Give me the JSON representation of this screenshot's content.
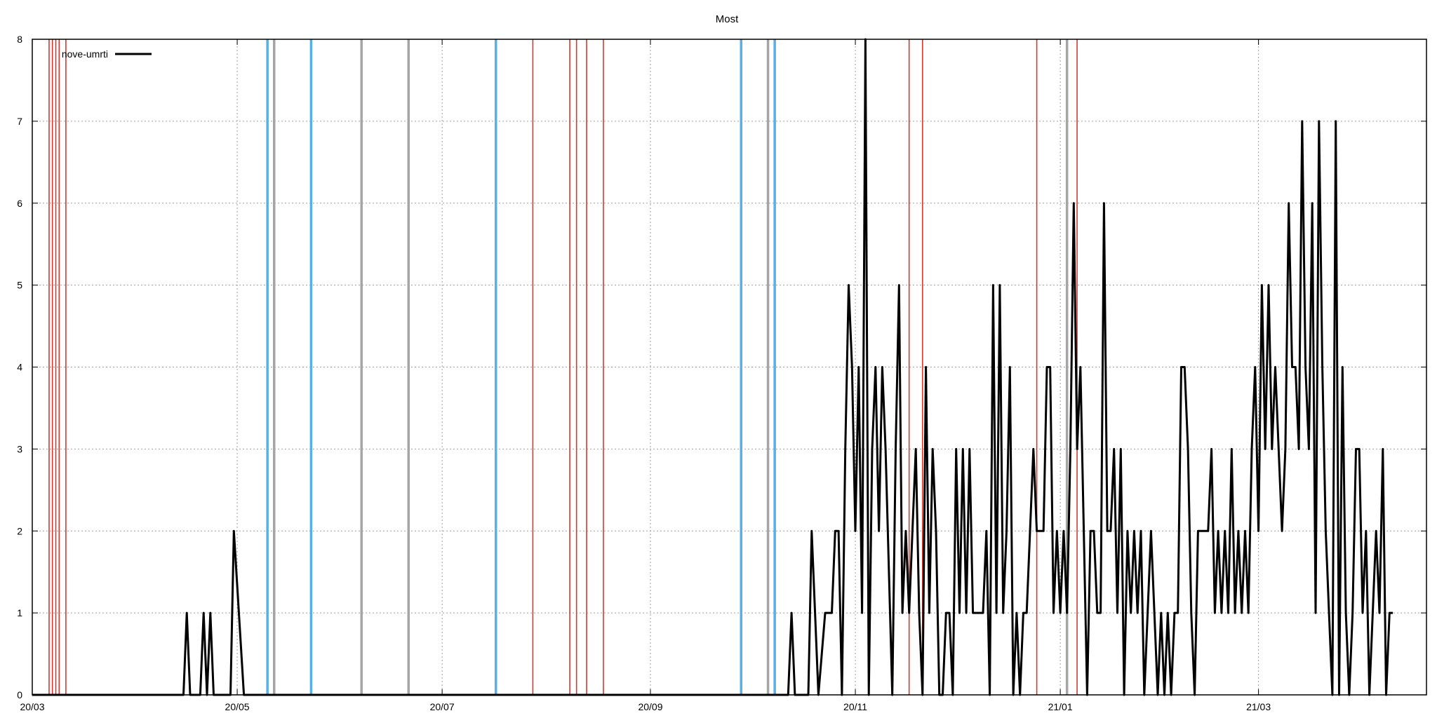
{
  "chart_data": {
    "type": "line",
    "title": "Most",
    "xlabel": "",
    "ylabel": "",
    "x_axis": {
      "range_dates": [
        "2020-03-01",
        "2021-04-20"
      ],
      "ticks": [
        {
          "date": "2020-03-01",
          "label": "20/03"
        },
        {
          "date": "2020-05-01",
          "label": "20/05"
        },
        {
          "date": "2020-07-01",
          "label": "20/07"
        },
        {
          "date": "2020-09-01",
          "label": "20/09"
        },
        {
          "date": "2020-11-01",
          "label": "20/11"
        },
        {
          "date": "2021-01-01",
          "label": "21/01"
        },
        {
          "date": "2021-03-01",
          "label": "21/03"
        }
      ]
    },
    "y_axis": {
      "range": [
        0,
        8
      ],
      "ticks": [
        "0",
        "1",
        "2",
        "3",
        "4",
        "5",
        "6",
        "7",
        "8"
      ]
    },
    "grid": true,
    "legend_position": "top-left",
    "series": [
      {
        "name": "nove-umrti",
        "color": "#000000",
        "points": [
          [
            "2020-03-01",
            0
          ],
          [
            "2020-04-15",
            0
          ],
          [
            "2020-04-16",
            1
          ],
          [
            "2020-04-17",
            0
          ],
          [
            "2020-04-20",
            0
          ],
          [
            "2020-04-21",
            1
          ],
          [
            "2020-04-22",
            0
          ],
          [
            "2020-04-23",
            1
          ],
          [
            "2020-04-24",
            0
          ],
          [
            "2020-04-29",
            0
          ],
          [
            "2020-04-30",
            2
          ],
          [
            "2020-05-03",
            0
          ],
          [
            "2020-10-12",
            0
          ],
          [
            "2020-10-13",
            1
          ],
          [
            "2020-10-14",
            0
          ],
          [
            "2020-10-18",
            0
          ],
          [
            "2020-10-19",
            2
          ],
          [
            "2020-10-21",
            0
          ],
          [
            "2020-10-23",
            1
          ],
          [
            "2020-10-25",
            1
          ],
          [
            "2020-10-26",
            2
          ],
          [
            "2020-10-27",
            2
          ],
          [
            "2020-10-28",
            0
          ],
          [
            "2020-10-29",
            3
          ],
          [
            "2020-10-30",
            5
          ],
          [
            "2020-10-31",
            4
          ],
          [
            "2020-11-01",
            2
          ],
          [
            "2020-11-02",
            4
          ],
          [
            "2020-11-03",
            1
          ],
          [
            "2020-11-04",
            8
          ],
          [
            "2020-11-05",
            0
          ],
          [
            "2020-11-06",
            3
          ],
          [
            "2020-11-07",
            4
          ],
          [
            "2020-11-08",
            2
          ],
          [
            "2020-11-09",
            4
          ],
          [
            "2020-11-10",
            3
          ],
          [
            "2020-11-12",
            0
          ],
          [
            "2020-11-13",
            3
          ],
          [
            "2020-11-14",
            5
          ],
          [
            "2020-11-15",
            1
          ],
          [
            "2020-11-16",
            2
          ],
          [
            "2020-11-17",
            1
          ],
          [
            "2020-11-18",
            2
          ],
          [
            "2020-11-19",
            3
          ],
          [
            "2020-11-20",
            1
          ],
          [
            "2020-11-21",
            0
          ],
          [
            "2020-11-22",
            4
          ],
          [
            "2020-11-23",
            1
          ],
          [
            "2020-11-24",
            3
          ],
          [
            "2020-11-25",
            2
          ],
          [
            "2020-11-26",
            0
          ],
          [
            "2020-11-27",
            0
          ],
          [
            "2020-11-28",
            1
          ],
          [
            "2020-11-29",
            1
          ],
          [
            "2020-11-30",
            0
          ],
          [
            "2020-12-01",
            3
          ],
          [
            "2020-12-02",
            1
          ],
          [
            "2020-12-03",
            3
          ],
          [
            "2020-12-04",
            1
          ],
          [
            "2020-12-05",
            3
          ],
          [
            "2020-12-06",
            1
          ],
          [
            "2020-12-09",
            1
          ],
          [
            "2020-12-10",
            2
          ],
          [
            "2020-12-11",
            0
          ],
          [
            "2020-12-12",
            5
          ],
          [
            "2020-12-13",
            1
          ],
          [
            "2020-12-14",
            5
          ],
          [
            "2020-12-15",
            1
          ],
          [
            "2020-12-16",
            2
          ],
          [
            "2020-12-17",
            4
          ],
          [
            "2020-12-18",
            0
          ],
          [
            "2020-12-19",
            1
          ],
          [
            "2020-12-20",
            0
          ],
          [
            "2020-12-21",
            1
          ],
          [
            "2020-12-22",
            1
          ],
          [
            "2020-12-23",
            2
          ],
          [
            "2020-12-24",
            3
          ],
          [
            "2020-12-25",
            2
          ],
          [
            "2020-12-27",
            2
          ],
          [
            "2020-12-28",
            4
          ],
          [
            "2020-12-29",
            4
          ],
          [
            "2020-12-30",
            1
          ],
          [
            "2020-12-31",
            2
          ],
          [
            "2021-01-01",
            1
          ],
          [
            "2021-01-02",
            2
          ],
          [
            "2021-01-03",
            1
          ],
          [
            "2021-01-04",
            3
          ],
          [
            "2021-01-05",
            6
          ],
          [
            "2021-01-06",
            3
          ],
          [
            "2021-01-07",
            4
          ],
          [
            "2021-01-08",
            2
          ],
          [
            "2021-01-09",
            0
          ],
          [
            "2021-01-10",
            2
          ],
          [
            "2021-01-11",
            2
          ],
          [
            "2021-01-12",
            1
          ],
          [
            "2021-01-13",
            1
          ],
          [
            "2021-01-14",
            6
          ],
          [
            "2021-01-15",
            2
          ],
          [
            "2021-01-16",
            2
          ],
          [
            "2021-01-17",
            3
          ],
          [
            "2021-01-18",
            1
          ],
          [
            "2021-01-19",
            3
          ],
          [
            "2021-01-20",
            0
          ],
          [
            "2021-01-21",
            2
          ],
          [
            "2021-01-22",
            1
          ],
          [
            "2021-01-23",
            2
          ],
          [
            "2021-01-24",
            1
          ],
          [
            "2021-01-25",
            2
          ],
          [
            "2021-01-26",
            0
          ],
          [
            "2021-01-27",
            1
          ],
          [
            "2021-01-28",
            2
          ],
          [
            "2021-01-29",
            1
          ],
          [
            "2021-01-30",
            0
          ],
          [
            "2021-01-31",
            1
          ],
          [
            "2021-02-01",
            0
          ],
          [
            "2021-02-02",
            1
          ],
          [
            "2021-02-03",
            0
          ],
          [
            "2021-02-04",
            1
          ],
          [
            "2021-02-05",
            1
          ],
          [
            "2021-02-06",
            4
          ],
          [
            "2021-02-07",
            4
          ],
          [
            "2021-02-08",
            3
          ],
          [
            "2021-02-09",
            1
          ],
          [
            "2021-02-10",
            0
          ],
          [
            "2021-02-11",
            2
          ],
          [
            "2021-02-12",
            2
          ],
          [
            "2021-02-14",
            2
          ],
          [
            "2021-02-15",
            3
          ],
          [
            "2021-02-16",
            1
          ],
          [
            "2021-02-17",
            2
          ],
          [
            "2021-02-18",
            1
          ],
          [
            "2021-02-19",
            2
          ],
          [
            "2021-02-20",
            1
          ],
          [
            "2021-02-21",
            3
          ],
          [
            "2021-02-22",
            1
          ],
          [
            "2021-02-23",
            2
          ],
          [
            "2021-02-24",
            1
          ],
          [
            "2021-02-25",
            2
          ],
          [
            "2021-02-26",
            1
          ],
          [
            "2021-02-27",
            3
          ],
          [
            "2021-02-28",
            4
          ],
          [
            "2021-03-01",
            2
          ],
          [
            "2021-03-02",
            5
          ],
          [
            "2021-03-03",
            3
          ],
          [
            "2021-03-04",
            5
          ],
          [
            "2021-03-05",
            3
          ],
          [
            "2021-03-06",
            4
          ],
          [
            "2021-03-07",
            3
          ],
          [
            "2021-03-08",
            2
          ],
          [
            "2021-03-09",
            3
          ],
          [
            "2021-03-10",
            6
          ],
          [
            "2021-03-11",
            4
          ],
          [
            "2021-03-12",
            4
          ],
          [
            "2021-03-13",
            3
          ],
          [
            "2021-03-14",
            7
          ],
          [
            "2021-03-15",
            4
          ],
          [
            "2021-03-16",
            3
          ],
          [
            "2021-03-17",
            6
          ],
          [
            "2021-03-18",
            1
          ],
          [
            "2021-03-19",
            7
          ],
          [
            "2021-03-20",
            4
          ],
          [
            "2021-03-21",
            2
          ],
          [
            "2021-03-22",
            1
          ],
          [
            "2021-03-23",
            0
          ],
          [
            "2021-03-24",
            7
          ],
          [
            "2021-03-25",
            0
          ],
          [
            "2021-03-26",
            4
          ],
          [
            "2021-03-27",
            1
          ],
          [
            "2021-03-28",
            0
          ],
          [
            "2021-03-29",
            1
          ],
          [
            "2021-03-30",
            3
          ],
          [
            "2021-03-31",
            3
          ],
          [
            "2021-04-01",
            1
          ],
          [
            "2021-04-02",
            2
          ],
          [
            "2021-04-03",
            0
          ],
          [
            "2021-04-04",
            1
          ],
          [
            "2021-04-05",
            2
          ],
          [
            "2021-04-06",
            1
          ],
          [
            "2021-04-07",
            3
          ],
          [
            "2021-04-08",
            0
          ],
          [
            "2021-04-09",
            1
          ],
          [
            "2021-04-10",
            1
          ]
        ]
      }
    ],
    "vertical_markers": [
      {
        "date": "2020-03-06",
        "color": "#d8382d",
        "type": "event"
      },
      {
        "date": "2020-03-07",
        "color": "#d8382d",
        "type": "event"
      },
      {
        "date": "2020-03-08",
        "color": "#d8382d",
        "type": "event"
      },
      {
        "date": "2020-03-09",
        "color": "#d8382d",
        "type": "event"
      },
      {
        "date": "2020-03-11",
        "color": "#d8382d",
        "type": "event"
      },
      {
        "date": "2020-05-10",
        "color": "#57b0e8",
        "type": "blue"
      },
      {
        "date": "2020-05-12",
        "color": "#a5a5a5",
        "type": "gray"
      },
      {
        "date": "2020-05-23",
        "color": "#57b0e8",
        "type": "blue"
      },
      {
        "date": "2020-06-07",
        "color": "#a5a5a5",
        "type": "gray"
      },
      {
        "date": "2020-06-21",
        "color": "#a5a5a5",
        "type": "gray"
      },
      {
        "date": "2020-07-17",
        "color": "#57b0e8",
        "type": "blue"
      },
      {
        "date": "2020-07-28",
        "color": "#d8382d",
        "type": "event"
      },
      {
        "date": "2020-08-08",
        "color": "#d8382d",
        "type": "event"
      },
      {
        "date": "2020-08-10",
        "color": "#d8382d",
        "type": "event"
      },
      {
        "date": "2020-08-13",
        "color": "#d8382d",
        "type": "event"
      },
      {
        "date": "2020-08-18",
        "color": "#d8382d",
        "type": "event"
      },
      {
        "date": "2020-09-28",
        "color": "#57b0e8",
        "type": "blue"
      },
      {
        "date": "2020-10-06",
        "color": "#a5a5a5",
        "type": "gray"
      },
      {
        "date": "2020-10-08",
        "color": "#57b0e8",
        "type": "blue"
      },
      {
        "date": "2020-11-17",
        "color": "#d8382d",
        "type": "event"
      },
      {
        "date": "2020-11-21",
        "color": "#d8382d",
        "type": "event"
      },
      {
        "date": "2020-12-25",
        "color": "#d8382d",
        "type": "event"
      },
      {
        "date": "2021-01-03",
        "color": "#a5a5a5",
        "type": "gray"
      },
      {
        "date": "2021-01-06",
        "color": "#d8382d",
        "type": "event"
      }
    ]
  }
}
